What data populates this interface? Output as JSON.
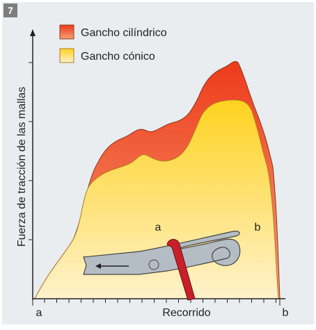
{
  "figure_number": "7",
  "legend": [
    {
      "label": "Gancho cilíndrico"
    },
    {
      "label": "Gancho cónico"
    }
  ],
  "y_axis_label": "Fuerza de tracción de las mallas",
  "x_axis": {
    "label": "Recorrido",
    "start": "a",
    "end": "b"
  },
  "illustration": {
    "label_a": "a",
    "label_b": "b"
  }
}
